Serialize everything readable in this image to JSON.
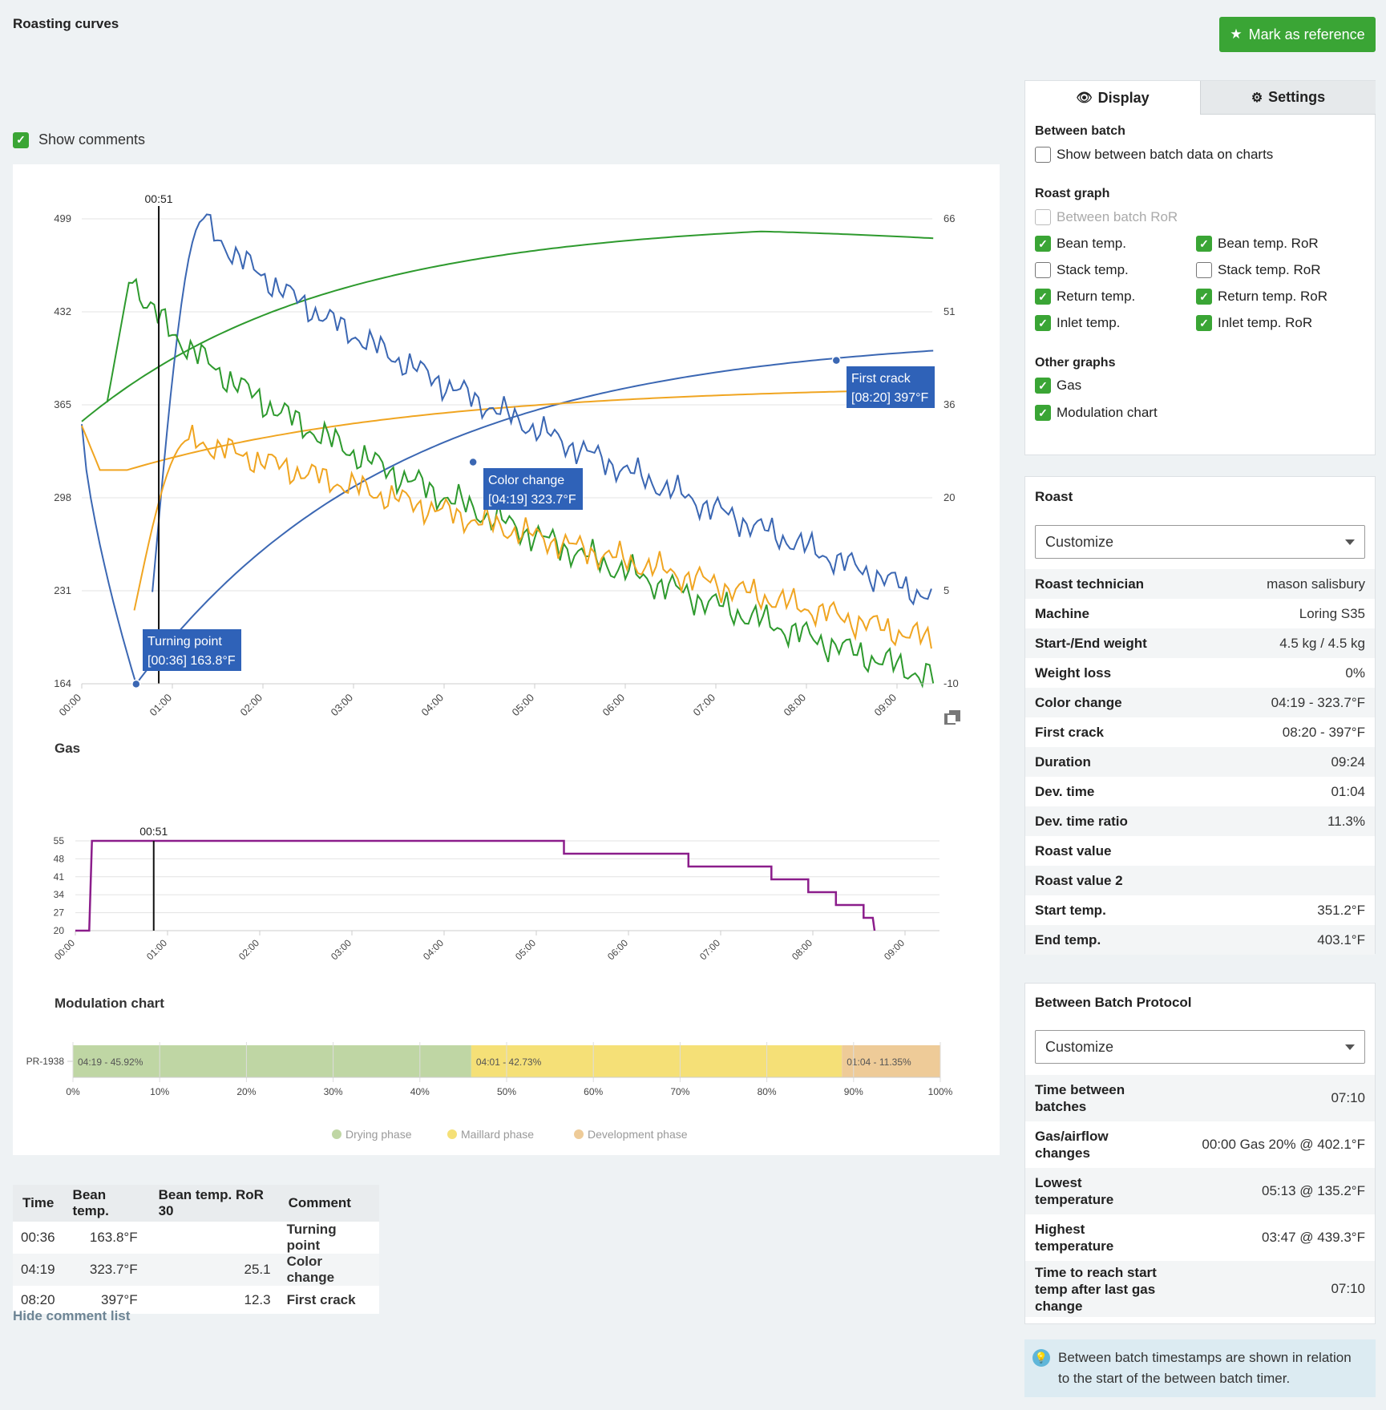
{
  "header": {
    "title": "Roasting curves",
    "mark_reference_label": "Mark as reference"
  },
  "show_comments": {
    "label": "Show comments",
    "checked": true
  },
  "main_chart": {
    "cursor_label": "00:51",
    "left_axis_ticks": [
      "499",
      "432",
      "365",
      "298",
      "231",
      "164"
    ],
    "right_axis_ticks": [
      "66",
      "51",
      "36",
      "20",
      "5",
      "-10"
    ],
    "x_ticks": [
      "00:00",
      "01:00",
      "02:00",
      "03:00",
      "04:00",
      "05:00",
      "06:00",
      "07:00",
      "08:00",
      "09:00"
    ],
    "annotations": {
      "turning_point": {
        "title": "Turning point",
        "detail": "[00:36] 163.8°F"
      },
      "color_change": {
        "title": "Color change",
        "detail": "[04:19] 323.7°F"
      },
      "first_crack": {
        "title": "First crack",
        "detail": "[08:20] 397°F"
      }
    },
    "colors": {
      "bean": "#3b67b3",
      "inlet": "#2e9a2e",
      "return": "#f0a521"
    }
  },
  "gas_chart": {
    "title": "Gas",
    "cursor_label": "00:51",
    "y_ticks": [
      "55",
      "48",
      "41",
      "34",
      "27",
      "20"
    ],
    "x_ticks": [
      "00:00",
      "01:00",
      "02:00",
      "03:00",
      "04:00",
      "05:00",
      "06:00",
      "07:00",
      "08:00",
      "09:00"
    ],
    "color": "#8b1d8b"
  },
  "modulation_chart": {
    "title": "Modulation chart",
    "row_label": "PR-1938",
    "segments": [
      {
        "label": "04:19 - 45.92%",
        "percent": 45.92,
        "color": "#bfd6a4"
      },
      {
        "label": "04:01 - 42.73%",
        "percent": 42.73,
        "color": "#f5e077"
      },
      {
        "label": "01:04 - 11.35%",
        "percent": 11.35,
        "color": "#eecb98"
      }
    ],
    "x_ticks": [
      "0%",
      "10%",
      "20%",
      "30%",
      "40%",
      "50%",
      "60%",
      "70%",
      "80%",
      "90%",
      "100%"
    ],
    "legend": [
      "Drying phase",
      "Maillard phase",
      "Development phase"
    ]
  },
  "comment_table": {
    "headers": [
      "Time",
      "Bean temp.",
      "Bean temp. RoR 30",
      "Comment"
    ],
    "rows": [
      [
        "00:36",
        "163.8°F",
        "",
        "Turning point"
      ],
      [
        "04:19",
        "323.7°F",
        "25.1",
        "Color change"
      ],
      [
        "08:20",
        "397°F",
        "12.3",
        "First crack"
      ]
    ],
    "hide_link": "Hide comment list"
  },
  "display_panel": {
    "tabs": [
      "Display",
      "Settings"
    ],
    "between_batch_heading": "Between batch",
    "between_batch_option": "Show between batch data on charts",
    "roast_graph_heading": "Roast graph",
    "between_batch_ror": "Between batch RoR",
    "options_left": [
      "Bean temp.",
      "Stack temp.",
      "Return temp.",
      "Inlet temp."
    ],
    "options_right": [
      "Bean temp. RoR",
      "Stack temp. RoR",
      "Return temp. RoR",
      "Inlet temp. RoR"
    ],
    "other_graphs_heading": "Other graphs",
    "other_graphs": [
      "Gas",
      "Modulation chart"
    ]
  },
  "roast_panel": {
    "title": "Roast",
    "select_value": "Customize",
    "rows": [
      [
        "Roast technician",
        "mason salisbury"
      ],
      [
        "Machine",
        "Loring S35"
      ],
      [
        "Start-/End weight",
        "4.5 kg / 4.5 kg"
      ],
      [
        "Weight loss",
        "0%"
      ],
      [
        "Color change",
        "04:19 - 323.7°F"
      ],
      [
        "First crack",
        "08:20 - 397°F"
      ],
      [
        "Duration",
        "09:24"
      ],
      [
        "Dev. time",
        "01:04"
      ],
      [
        "Dev. time ratio",
        "11.3%"
      ],
      [
        "Roast value",
        ""
      ],
      [
        "Roast value 2",
        ""
      ],
      [
        "Start temp.",
        "351.2°F"
      ],
      [
        "End temp.",
        "403.1°F"
      ]
    ]
  },
  "bbp_panel": {
    "title": "Between Batch Protocol",
    "select_value": "Customize",
    "rows": [
      [
        "Time between batches",
        "07:10"
      ],
      [
        "Gas/airflow changes",
        "00:00 Gas 20% @ 402.1°F"
      ],
      [
        "Lowest temperature",
        "05:13 @ 135.2°F"
      ],
      [
        "Highest temperature",
        "03:47 @ 439.3°F"
      ],
      [
        "Time to reach start temp after last gas change",
        "07:10"
      ]
    ]
  },
  "hint": {
    "text": "Between batch timestamps are shown in relation to the start of the between batch timer."
  }
}
